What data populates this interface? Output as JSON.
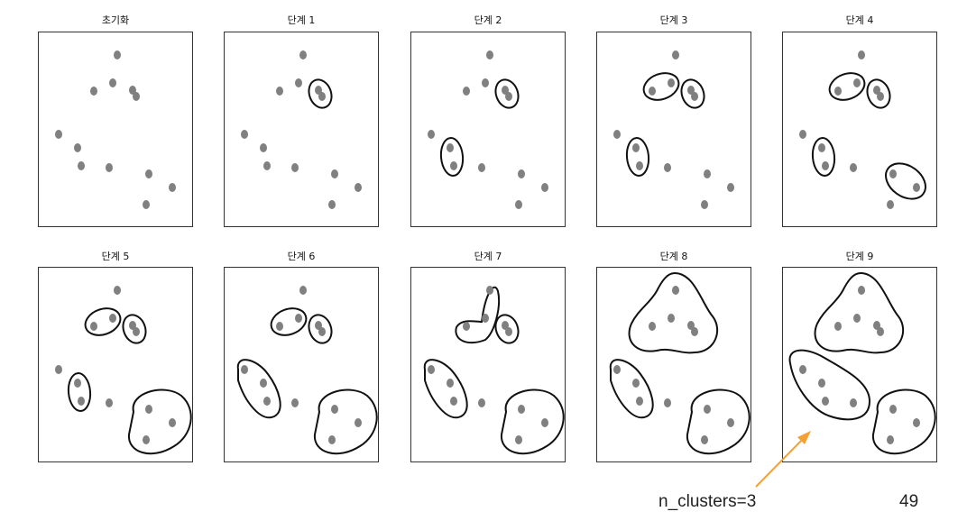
{
  "panels": [
    {
      "title": "초기화"
    },
    {
      "title": "단계 1"
    },
    {
      "title": "단계 2"
    },
    {
      "title": "단계 3"
    },
    {
      "title": "단계 4"
    },
    {
      "title": "단계 5"
    },
    {
      "title": "단계 6"
    },
    {
      "title": "단계 7"
    },
    {
      "title": "단계 8"
    },
    {
      "title": "단계 9"
    }
  ],
  "caption": "n_clusters=3",
  "page_number": "49",
  "colors": {
    "point": "#808080",
    "outline": "#111111",
    "frame": "#333333",
    "arrow": "#f5a033"
  }
}
